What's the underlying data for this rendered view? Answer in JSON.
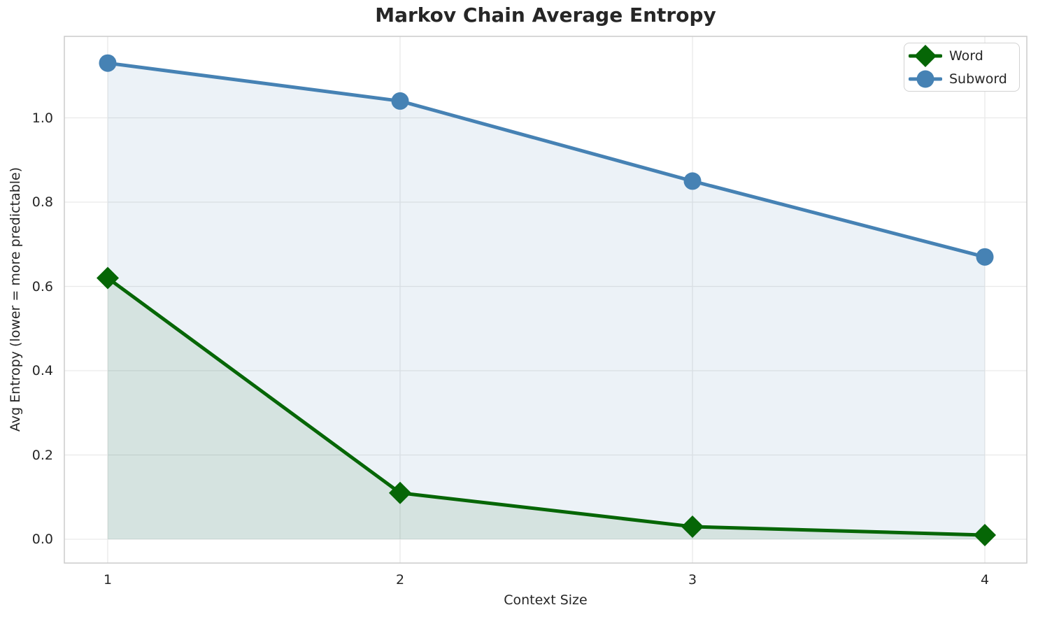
{
  "chart_data": {
    "type": "line",
    "title": "Markov Chain Average Entropy",
    "xlabel": "Context Size",
    "ylabel": "Avg Entropy (lower = more predictable)",
    "x": [
      1,
      2,
      3,
      4
    ],
    "series": [
      {
        "name": "Word",
        "values": [
          0.62,
          0.11,
          0.03,
          0.01
        ],
        "color": "#066606",
        "marker": "diamond",
        "fill_to_zero": true,
        "fill_opacity": 0.1
      },
      {
        "name": "Subword",
        "values": [
          1.13,
          1.04,
          0.85,
          0.67
        ],
        "color": "#4682B4",
        "marker": "circle",
        "fill_to_zero": true,
        "fill_opacity": 0.1
      }
    ],
    "xticks": [
      1,
      2,
      3,
      4
    ],
    "yticks": [
      0.0,
      0.2,
      0.4,
      0.6,
      0.8,
      1.0
    ],
    "xlim": [
      0.8517,
      4.1435
    ],
    "ylim": [
      -0.0564,
      1.1934
    ],
    "grid": true,
    "legend_position": "upper right",
    "styles": {
      "grid_color": "#e9e9e9",
      "spine_color": "#cbcbcb",
      "text_color": "#262626",
      "line_width": 5
    }
  }
}
